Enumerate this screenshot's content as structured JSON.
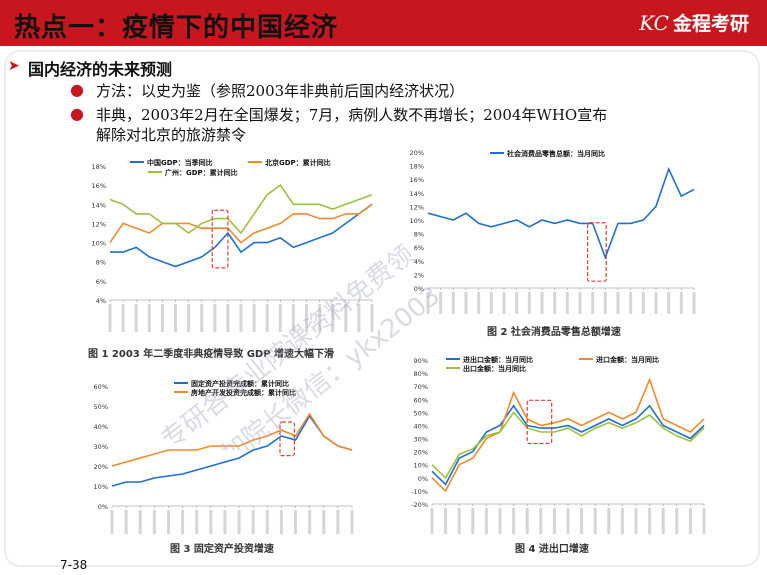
{
  "header": {
    "title": "热点一：疫情下的中国经济",
    "logo_mark": "KC",
    "logo_text": "金程考研"
  },
  "section": {
    "title": "国内经济的未来预测"
  },
  "bullets": [
    "方法：以史为鉴（参照2003年非典前后国内经济状况）",
    "非典，2003年2月在全国爆发；7月，病例人数不再增长；2004年WHO宣布",
    "解除对北京的旅游禁令"
  ],
  "figures": {
    "fig1": {
      "caption": "图 1 2003 年二季度非典疫情导致 GDP 增速大幅下滑",
      "legend": [
        "中国GDP：当季同比",
        "北京GDP：累计同比",
        "广州：GDP：累计同比"
      ],
      "yticks": [
        "18%",
        "16%",
        "14%",
        "12%",
        "10%",
        "8%",
        "6%",
        "4%"
      ]
    },
    "fig2": {
      "caption": "图 2 社会消费品零售总额增速",
      "legend": [
        "社会消费品零售总额：当月同比"
      ],
      "yticks": [
        "20%",
        "18%",
        "16%",
        "14%",
        "12%",
        "10%",
        "8%",
        "6%",
        "4%",
        "2%",
        "0%"
      ]
    },
    "fig3": {
      "caption": "图 3 固定资产投资增速",
      "legend": [
        "固定资产投资完成额：累计同比",
        "房地产开发投资完成额：累计同比"
      ],
      "yticks": [
        "60%",
        "50%",
        "40%",
        "30%",
        "20%",
        "10%",
        "0%"
      ]
    },
    "fig4": {
      "caption": "图 4 进出口增速",
      "legend": [
        "进出口金额：当月同比",
        "进口金额：当月同比",
        "出口金额：当月同比"
      ],
      "yticks": [
        "90%",
        "80%",
        "70%",
        "60%",
        "50%",
        "40%",
        "30%",
        "20%",
        "10%",
        "0%",
        "-10%",
        "-20%"
      ]
    }
  },
  "watermark": [
    "专研各专业院课资料免费领",
    "添加院长微信：ykx2003"
  ],
  "page_number": "7-38",
  "colors": {
    "brand_red": "#c8161e",
    "series_blue": "#1f6fd1",
    "series_orange": "#f08a2c",
    "series_green": "#9ac23c"
  },
  "chart_data": [
    {
      "type": "line",
      "title": "",
      "series": [
        {
          "name": "中国GDP：当季同比",
          "values": [
            9,
            9,
            9.5,
            8.5,
            8,
            7.5,
            8,
            8.5,
            9.5,
            11,
            9,
            10,
            10,
            10.5,
            9.5,
            10,
            10.5,
            11,
            12,
            13,
            14
          ]
        },
        {
          "name": "北京GDP：累计同比",
          "values": [
            10,
            12,
            11.5,
            11,
            12,
            12,
            12,
            11.5,
            11.5,
            11.5,
            10,
            11,
            11.5,
            12,
            13,
            13,
            12.5,
            12.5,
            13,
            13,
            14
          ]
        },
        {
          "name": "广州：GDP：累计同比",
          "values": [
            14.5,
            14,
            13,
            13,
            12,
            12,
            11,
            12,
            12.5,
            12.5,
            11,
            13,
            15,
            16,
            14,
            14,
            14,
            13.5,
            14,
            14.5,
            15
          ]
        }
      ],
      "ylim": [
        4,
        18
      ]
    },
    {
      "type": "line",
      "title": "",
      "series": [
        {
          "name": "社会消费品零售总额：当月同比",
          "values": [
            11,
            10.5,
            10,
            11,
            9.5,
            9,
            9.5,
            10,
            9,
            10,
            9.5,
            10,
            9.5,
            9.5,
            4.5,
            9.5,
            9.5,
            10,
            12,
            17.5,
            13.5,
            14.5
          ]
        }
      ],
      "ylim": [
        0,
        20
      ]
    },
    {
      "type": "line",
      "title": "",
      "series": [
        {
          "name": "固定资产投资完成额：累计同比",
          "values": [
            10,
            12,
            12,
            14,
            15,
            16,
            18,
            20,
            22,
            24,
            28,
            30,
            35,
            33,
            45,
            35,
            30,
            28
          ]
        },
        {
          "name": "房地产开发投资完成额：累计同比",
          "values": [
            20,
            22,
            24,
            26,
            28,
            28,
            28,
            30,
            30,
            30,
            33,
            35,
            38,
            35,
            46,
            35,
            30,
            28
          ]
        }
      ],
      "ylim": [
        0,
        60
      ]
    },
    {
      "type": "line",
      "title": "",
      "series": [
        {
          "name": "进出口金额：当月同比",
          "values": [
            5,
            -5,
            15,
            20,
            35,
            40,
            55,
            40,
            38,
            38,
            40,
            35,
            40,
            45,
            40,
            45,
            55,
            40,
            35,
            30,
            40
          ]
        },
        {
          "name": "进口金额：当月同比",
          "values": [
            0,
            -10,
            10,
            15,
            30,
            35,
            65,
            45,
            40,
            42,
            45,
            40,
            45,
            50,
            45,
            50,
            75,
            45,
            40,
            35,
            45
          ]
        },
        {
          "name": "出口金额：当月同比",
          "values": [
            10,
            0,
            18,
            22,
            32,
            35,
            50,
            38,
            35,
            35,
            38,
            32,
            38,
            42,
            38,
            42,
            48,
            38,
            32,
            28,
            38
          ]
        }
      ],
      "ylim": [
        -20,
        90
      ]
    }
  ]
}
